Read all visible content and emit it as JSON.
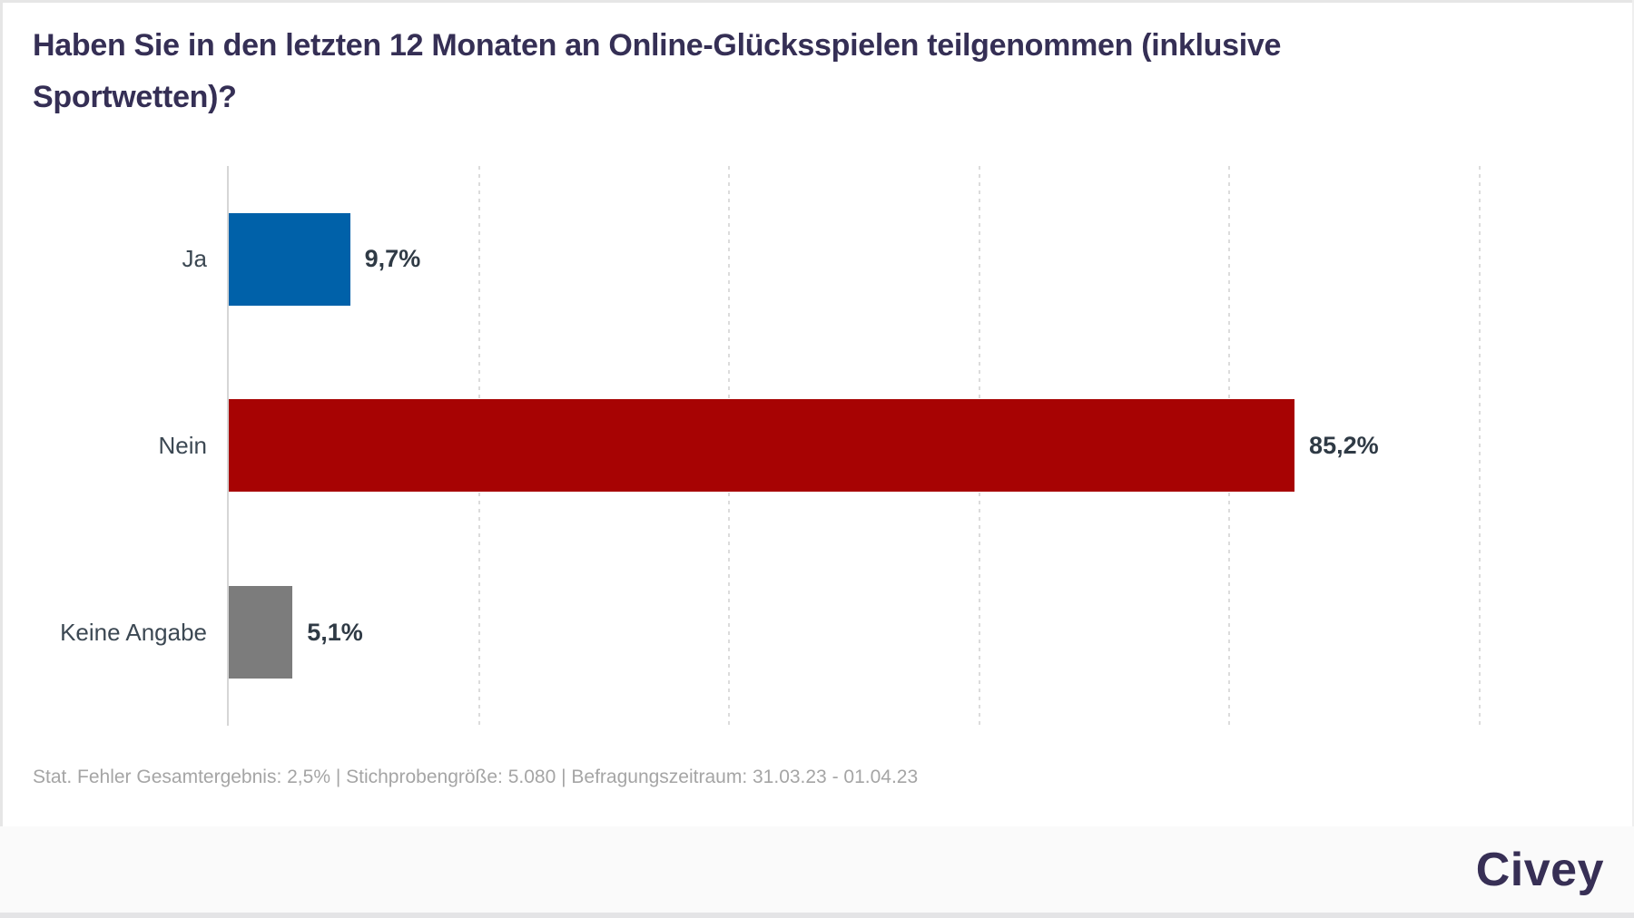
{
  "header": {
    "title": "Haben Sie in den letzten 12 Monaten an Online-Glücksspielen teilgenommen (inklusive Sportwetten)?"
  },
  "chart_data": {
    "type": "bar",
    "orientation": "horizontal",
    "title": "Haben Sie in den letzten 12 Monaten an Online-Glücksspielen teilgenommen (inklusive Sportwetten)?",
    "categories": [
      "Ja",
      "Nein",
      "Keine Angabe"
    ],
    "values": [
      9.7,
      85.2,
      5.1
    ],
    "value_labels": [
      "9,7%",
      "85,2%",
      "5,1%"
    ],
    "bar_colors": [
      "#0061a9",
      "#a70303",
      "#7c7c7c"
    ],
    "xlim": [
      0,
      100
    ],
    "gridlines_percent": [
      20,
      40,
      60,
      80,
      100
    ],
    "grid": "vertical-dotted",
    "legend": "none"
  },
  "footer": {
    "stats": "Stat. Fehler Gesamtergebnis: 2,5% | Stichprobengröße: 5.080 | Befragungszeitraum: 31.03.23 - 01.04.23",
    "logo_text": "Civey"
  },
  "style": {
    "title_color": "#352f55",
    "category_label_color": "#3c4853",
    "value_label_color": "#2f3a45",
    "footnote_color": "#a5a5a5",
    "axis_color": "#d6d6d6",
    "gridline_color": "#dcdcdc",
    "footer_background": "#fafafa",
    "blue": "#0061a9",
    "red": "#a70303",
    "gray": "#7c7c7c"
  }
}
